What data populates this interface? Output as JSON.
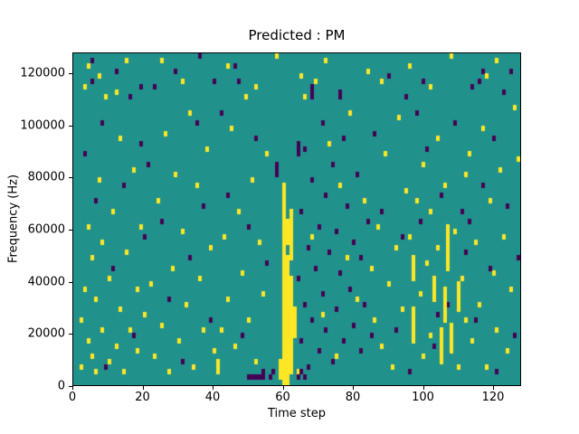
{
  "chart_data": {
    "type": "heatmap",
    "title": "Predicted : PM",
    "xlabel": "Time step",
    "ylabel": "Frequency (Hz)",
    "xlim": [
      0,
      128
    ],
    "ylim": [
      0,
      128000
    ],
    "xticks": [
      0,
      20,
      40,
      60,
      80,
      100,
      120
    ],
    "yticks": [
      0,
      20000,
      40000,
      60000,
      80000,
      100000,
      120000
    ],
    "grid": {
      "cols": 128,
      "rows": 64,
      "hz_per_row": 2000,
      "gridlines": false
    },
    "legend": null,
    "colors": {
      "background_value": "#21918c",
      "high_value": "#fde725",
      "low_value": "#440154",
      "spine": "#000000",
      "figure_background": "#ffffff"
    },
    "cells": {
      "yellow": [
        [
          2,
          3
        ],
        [
          2,
          12
        ],
        [
          3,
          18
        ],
        [
          3,
          57
        ],
        [
          4,
          8
        ],
        [
          4,
          30
        ],
        [
          4,
          61
        ],
        [
          5,
          5
        ],
        [
          5,
          24
        ],
        [
          6,
          2
        ],
        [
          6,
          16
        ],
        [
          7,
          39
        ],
        [
          7,
          59
        ],
        [
          8,
          10
        ],
        [
          8,
          27
        ],
        [
          9,
          55
        ],
        [
          10,
          4
        ],
        [
          10,
          20
        ],
        [
          11,
          33
        ],
        [
          12,
          7
        ],
        [
          12,
          56
        ],
        [
          13,
          14
        ],
        [
          13,
          47
        ],
        [
          14,
          2
        ],
        [
          15,
          25
        ],
        [
          15,
          62
        ],
        [
          16,
          10
        ],
        [
          17,
          41
        ],
        [
          18,
          6
        ],
        [
          18,
          18
        ],
        [
          19,
          30
        ],
        [
          20,
          13
        ],
        [
          22,
          19
        ],
        [
          23,
          5
        ],
        [
          24,
          35
        ],
        [
          25,
          11
        ],
        [
          25,
          62
        ],
        [
          26,
          48
        ],
        [
          27,
          2
        ],
        [
          28,
          22
        ],
        [
          29,
          40
        ],
        [
          30,
          8
        ],
        [
          31,
          29
        ],
        [
          31,
          58
        ],
        [
          32,
          15
        ],
        [
          33,
          52
        ],
        [
          34,
          3
        ],
        [
          35,
          38
        ],
        [
          36,
          20
        ],
        [
          37,
          10
        ],
        [
          38,
          45
        ],
        [
          39,
          26
        ],
        [
          40,
          6
        ],
        [
          42,
          10
        ],
        [
          43,
          28
        ],
        [
          44,
          16
        ],
        [
          44,
          61
        ],
        [
          45,
          49
        ],
        [
          46,
          7
        ],
        [
          47,
          33
        ],
        [
          48,
          21
        ],
        [
          49,
          55
        ],
        [
          50,
          12
        ],
        [
          51,
          39
        ],
        [
          52,
          4
        ],
        [
          52,
          57
        ],
        [
          53,
          27
        ],
        [
          54,
          17
        ],
        [
          55,
          44
        ],
        [
          58,
          63
        ],
        [
          64,
          2
        ],
        [
          65,
          59
        ],
        [
          66,
          55
        ],
        [
          68,
          28
        ],
        [
          69,
          58
        ],
        [
          71,
          13
        ],
        [
          72,
          62
        ],
        [
          73,
          46
        ],
        [
          75,
          5
        ],
        [
          76,
          38
        ],
        [
          78,
          24
        ],
        [
          79,
          52
        ],
        [
          81,
          16
        ],
        [
          83,
          35
        ],
        [
          84,
          60
        ],
        [
          85,
          22
        ],
        [
          86,
          12
        ],
        [
          87,
          30
        ],
        [
          88,
          7
        ],
        [
          88,
          58
        ],
        [
          89,
          44
        ],
        [
          90,
          19
        ],
        [
          91,
          3
        ],
        [
          92,
          26
        ],
        [
          93,
          51
        ],
        [
          94,
          14
        ],
        [
          95,
          37
        ],
        [
          96,
          28
        ],
        [
          96,
          61
        ],
        [
          98,
          35
        ],
        [
          99,
          17
        ],
        [
          100,
          5
        ],
        [
          100,
          42
        ],
        [
          101,
          23
        ],
        [
          102,
          9
        ],
        [
          102,
          33
        ],
        [
          102,
          57
        ],
        [
          104,
          26
        ],
        [
          104,
          47
        ],
        [
          106,
          38
        ],
        [
          108,
          63
        ],
        [
          109,
          29
        ],
        [
          110,
          3
        ],
        [
          111,
          20
        ],
        [
          112,
          12
        ],
        [
          112,
          40
        ],
        [
          113,
          44
        ],
        [
          114,
          8
        ],
        [
          115,
          27
        ],
        [
          116,
          15
        ],
        [
          117,
          49
        ],
        [
          118,
          3
        ],
        [
          118,
          59
        ],
        [
          119,
          35
        ],
        [
          120,
          21
        ],
        [
          121,
          10
        ],
        [
          121,
          62
        ],
        [
          122,
          41
        ],
        [
          123,
          28
        ],
        [
          124,
          6
        ],
        [
          125,
          18
        ],
        [
          126,
          53
        ],
        [
          127,
          43
        ]
      ],
      "yellow_runs": [
        [
          60,
          0,
          38
        ],
        [
          61,
          0,
          24
        ],
        [
          61,
          27,
          31
        ],
        [
          62,
          2,
          20
        ],
        [
          62,
          24,
          33
        ],
        [
          59,
          1,
          4
        ],
        [
          63,
          9,
          14
        ],
        [
          41,
          2,
          4
        ],
        [
          97,
          8,
          14
        ],
        [
          97,
          20,
          24
        ],
        [
          103,
          16,
          20
        ],
        [
          105,
          4,
          10
        ],
        [
          106,
          12,
          18
        ],
        [
          107,
          22,
          30
        ],
        [
          108,
          6,
          11
        ],
        [
          110,
          14,
          19
        ]
      ],
      "purple": [
        [
          3,
          44
        ],
        [
          5,
          58
        ],
        [
          5,
          62
        ],
        [
          6,
          35
        ],
        [
          8,
          50
        ],
        [
          9,
          3
        ],
        [
          11,
          22
        ],
        [
          12,
          60
        ],
        [
          14,
          38
        ],
        [
          16,
          55
        ],
        [
          17,
          9
        ],
        [
          19,
          46
        ],
        [
          19,
          57
        ],
        [
          20,
          28
        ],
        [
          21,
          42
        ],
        [
          23,
          57
        ],
        [
          25,
          31
        ],
        [
          27,
          16
        ],
        [
          29,
          60
        ],
        [
          31,
          4
        ],
        [
          33,
          24
        ],
        [
          35,
          50
        ],
        [
          36,
          63
        ],
        [
          37,
          34
        ],
        [
          39,
          12
        ],
        [
          40,
          58
        ],
        [
          42,
          52
        ],
        [
          44,
          36
        ],
        [
          46,
          61
        ],
        [
          47,
          58
        ],
        [
          48,
          9
        ],
        [
          50,
          30
        ],
        [
          52,
          47
        ],
        [
          54,
          2
        ],
        [
          55,
          23
        ],
        [
          50,
          1
        ],
        [
          51,
          1
        ],
        [
          52,
          1
        ],
        [
          53,
          1
        ],
        [
          54,
          1
        ],
        [
          56,
          1
        ],
        [
          57,
          2
        ],
        [
          64,
          1
        ],
        [
          64,
          20
        ],
        [
          65,
          2
        ],
        [
          65,
          8
        ],
        [
          65,
          33
        ],
        [
          66,
          1
        ],
        [
          66,
          15
        ],
        [
          66,
          45
        ],
        [
          67,
          3
        ],
        [
          67,
          26
        ],
        [
          68,
          12
        ],
        [
          68,
          39
        ],
        [
          69,
          22
        ],
        [
          70,
          6
        ],
        [
          70,
          30
        ],
        [
          71,
          17
        ],
        [
          71,
          50
        ],
        [
          72,
          10
        ],
        [
          72,
          36
        ],
        [
          73,
          25
        ],
        [
          74,
          4
        ],
        [
          74,
          42
        ],
        [
          75,
          14
        ],
        [
          75,
          29
        ],
        [
          76,
          21
        ],
        [
          77,
          8
        ],
        [
          77,
          47
        ],
        [
          78,
          34
        ],
        [
          79,
          18
        ],
        [
          80,
          11
        ],
        [
          80,
          27
        ],
        [
          81,
          40
        ],
        [
          82,
          6
        ],
        [
          82,
          24
        ],
        [
          83,
          15
        ],
        [
          84,
          31
        ],
        [
          85,
          9
        ],
        [
          86,
          48
        ],
        [
          88,
          33
        ],
        [
          90,
          59
        ],
        [
          92,
          10
        ],
        [
          94,
          28
        ],
        [
          95,
          55
        ],
        [
          96,
          2
        ],
        [
          98,
          52
        ],
        [
          99,
          31
        ],
        [
          100,
          58
        ],
        [
          101,
          45
        ],
        [
          103,
          7
        ],
        [
          104,
          13
        ],
        [
          105,
          36
        ],
        [
          107,
          15
        ],
        [
          109,
          50
        ],
        [
          111,
          33
        ],
        [
          112,
          25
        ],
        [
          113,
          31
        ],
        [
          114,
          57
        ],
        [
          115,
          12
        ],
        [
          116,
          58
        ],
        [
          117,
          38
        ],
        [
          117,
          60
        ],
        [
          119,
          22
        ],
        [
          120,
          47
        ],
        [
          121,
          2
        ],
        [
          123,
          56
        ],
        [
          124,
          34
        ],
        [
          125,
          60
        ],
        [
          126,
          9
        ],
        [
          127,
          24
        ]
      ],
      "purple_runs": [
        [
          58,
          40,
          42
        ],
        [
          64,
          44,
          46
        ],
        [
          68,
          55,
          57
        ],
        [
          76,
          55,
          56
        ]
      ]
    }
  }
}
